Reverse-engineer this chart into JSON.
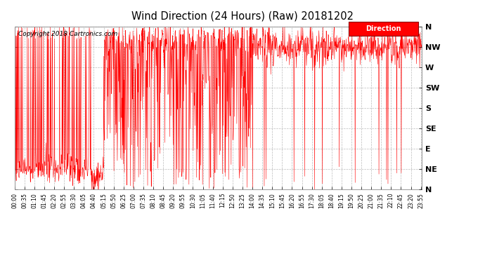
{
  "title": "Wind Direction (24 Hours) (Raw) 20181202",
  "copyright": "Copyright 2018 Cartronics.com",
  "legend_label": "Direction",
  "bg_color": "#ffffff",
  "plot_bg_color": "#ffffff",
  "grid_color": "#bbbbbb",
  "line_color": "#ff0000",
  "ytick_labels": [
    "N",
    "NE",
    "E",
    "SE",
    "S",
    "SW",
    "W",
    "NW",
    "N"
  ],
  "ytick_values": [
    0,
    45,
    90,
    135,
    180,
    225,
    270,
    315,
    360
  ],
  "ylim": [
    0,
    360
  ],
  "xtick_step_minutes": 35,
  "total_minutes": 1440
}
